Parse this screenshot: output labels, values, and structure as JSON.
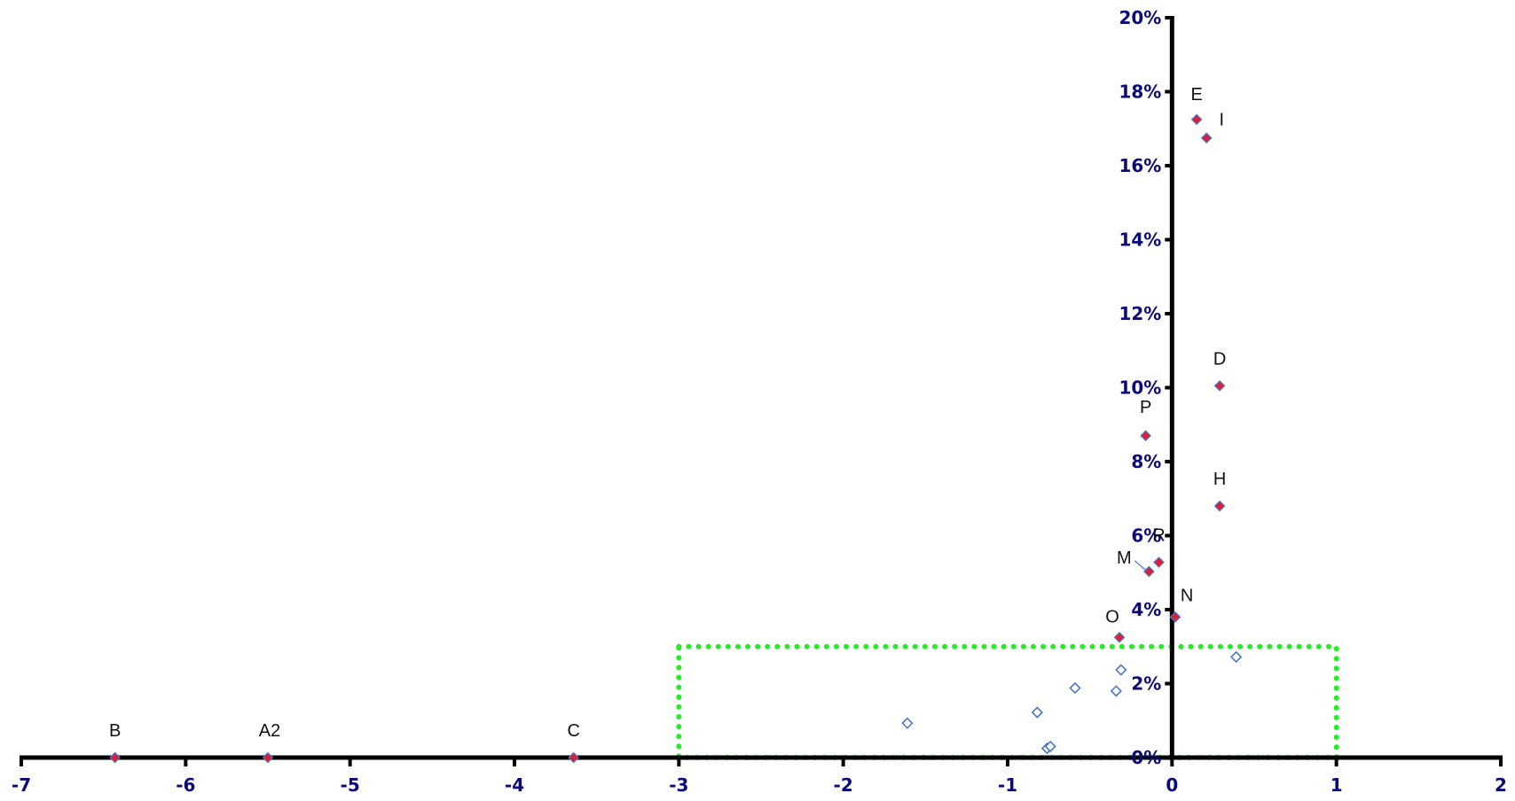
{
  "chart_data": {
    "type": "scatter",
    "title": "",
    "xlabel": "",
    "ylabel": "",
    "xlim": [
      -7,
      2
    ],
    "ylim": [
      0,
      0.2
    ],
    "x_ticks": [
      -7,
      -6,
      -5,
      -4,
      -3,
      -2,
      -1,
      0,
      1,
      2
    ],
    "x_tick_labels": [
      "-7",
      "-6",
      "-5",
      "-4",
      "-3",
      "-2",
      "-1",
      "0",
      "1",
      "2"
    ],
    "y_ticks": [
      0,
      0.02,
      0.04,
      0.06,
      0.08,
      0.1,
      0.12,
      0.14,
      0.16,
      0.18,
      0.2
    ],
    "y_tick_labels": [
      "0%",
      "2%",
      "4%",
      "6%",
      "8%",
      "10%",
      "12%",
      "14%",
      "16%",
      "18%",
      "20%"
    ],
    "grid": false,
    "legend": "none",
    "series": [
      {
        "marker": "filled-diamond",
        "points": [
          {
            "label": "E",
            "x": 0.15,
            "y": 0.1725
          },
          {
            "label": "I",
            "x": 0.21,
            "y": 0.1675
          },
          {
            "label": "D",
            "x": 0.29,
            "y": 0.1005
          },
          {
            "label": "P",
            "x": -0.16,
            "y": 0.087
          },
          {
            "label": "H",
            "x": 0.29,
            "y": 0.068
          },
          {
            "label": "R",
            "x": -0.08,
            "y": 0.0528
          },
          {
            "label": "M",
            "x": -0.14,
            "y": 0.0503
          },
          {
            "label": "N",
            "x": 0.02,
            "y": 0.038
          },
          {
            "label": "O",
            "x": -0.32,
            "y": 0.0325
          },
          {
            "label": "B",
            "x": -6.43,
            "y": 0.0
          },
          {
            "label": "A2",
            "x": -5.5,
            "y": 0.0
          },
          {
            "label": "C",
            "x": -3.64,
            "y": 0.0
          }
        ]
      },
      {
        "marker": "hollow-diamond",
        "points": [
          {
            "x": -0.31,
            "y": 0.0237
          },
          {
            "x": -0.34,
            "y": 0.018
          },
          {
            "x": -0.59,
            "y": 0.0188
          },
          {
            "x": -0.82,
            "y": 0.0122
          },
          {
            "x": -1.61,
            "y": 0.0093
          },
          {
            "x": -0.76,
            "y": 0.0025
          },
          {
            "x": -0.74,
            "y": 0.003
          },
          {
            "x": 0.39,
            "y": 0.0272
          }
        ]
      }
    ],
    "highlight_box": {
      "x0": -3,
      "x1": 1,
      "y0": 0,
      "y1": 0.03,
      "style": "dotted",
      "color": "#22ee22"
    },
    "colors": {
      "axis": "#000000",
      "tick_text": "#0a0a7a",
      "filled_marker_fill": "#d8203a",
      "marker_stroke": "#4a78c8",
      "label_text": "#111111"
    }
  }
}
